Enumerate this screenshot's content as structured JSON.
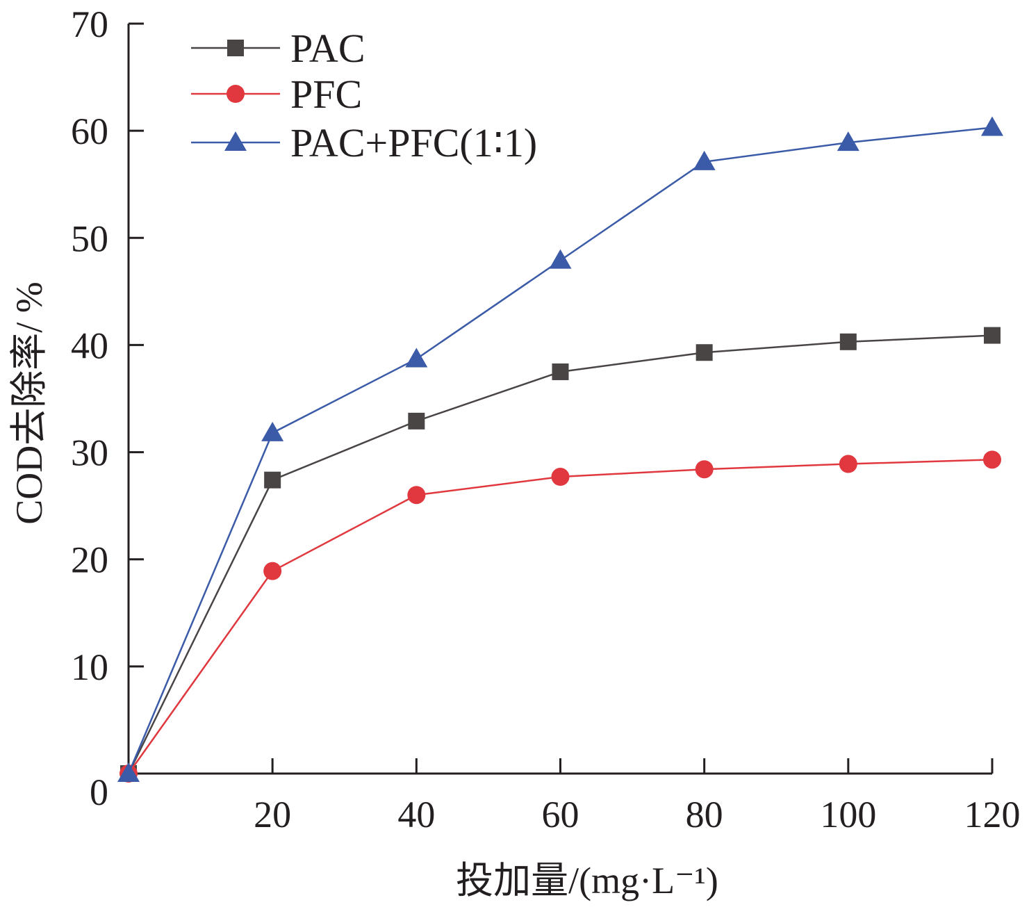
{
  "chart_data": {
    "type": "line",
    "title": "",
    "xlabel": "投加量/(mg·L⁻¹)",
    "ylabel": "COD去除率/ %",
    "x": [
      0,
      20,
      40,
      60,
      80,
      100,
      120
    ],
    "x_ticks": [
      20,
      40,
      60,
      80,
      100,
      120
    ],
    "y_ticks": [
      0,
      10,
      20,
      30,
      40,
      50,
      60,
      70
    ],
    "xlim": [
      0,
      120
    ],
    "ylim": [
      0,
      70
    ],
    "grid": false,
    "legend_position": "top-left",
    "series": [
      {
        "name": "PAC",
        "marker": "square",
        "color": "#4a4545",
        "values": [
          0,
          27.4,
          32.9,
          37.5,
          39.3,
          40.3,
          40.9
        ]
      },
      {
        "name": "PFC",
        "marker": "circle",
        "color": "#e0383e",
        "values": [
          0,
          18.9,
          26.0,
          27.7,
          28.4,
          28.9,
          29.3
        ]
      },
      {
        "name": "PAC+PFC(1∶1)",
        "marker": "triangle",
        "color": "#3b5ba8",
        "values": [
          0,
          31.8,
          38.7,
          47.9,
          57.1,
          58.9,
          60.3
        ]
      }
    ]
  }
}
